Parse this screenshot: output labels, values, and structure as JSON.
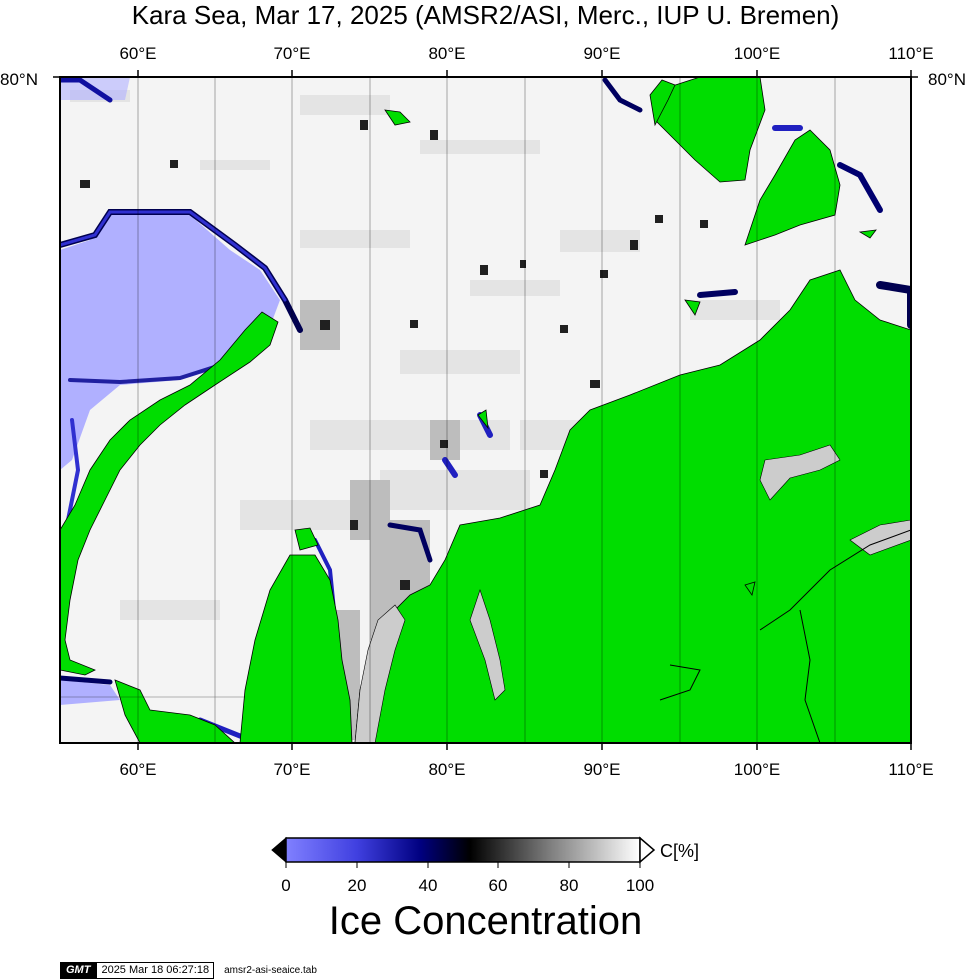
{
  "title": "Kara Sea, Mar 17, 2025 (AMSR2/ASI, Merc., IUP U. Bremen)",
  "map": {
    "longitude_labels": [
      "60°E",
      "70°E",
      "80°E",
      "90°E",
      "100°E",
      "110°E"
    ],
    "longitude_values": [
      60,
      70,
      80,
      90,
      100,
      110
    ],
    "latitude_label": "80°N",
    "lon_range": [
      55,
      110
    ],
    "land_color": "#00dd00",
    "open_water_color": "#b0b0ff",
    "coastline_color": "#000000"
  },
  "colorbar": {
    "ticks": [
      "0",
      "20",
      "40",
      "60",
      "80",
      "100"
    ],
    "tick_values": [
      0,
      20,
      40,
      60,
      80,
      100
    ],
    "unit": "C[%]",
    "title": "Ice Concentration",
    "colors": [
      "#8080ff",
      "#4040e0",
      "#000080",
      "#000000",
      "#808080",
      "#ffffff"
    ]
  },
  "footer": {
    "logo": "GMT",
    "timestamp": "2025 Mar 18 06:27:18",
    "filename": "amsr2-asi-seaice.tab"
  }
}
